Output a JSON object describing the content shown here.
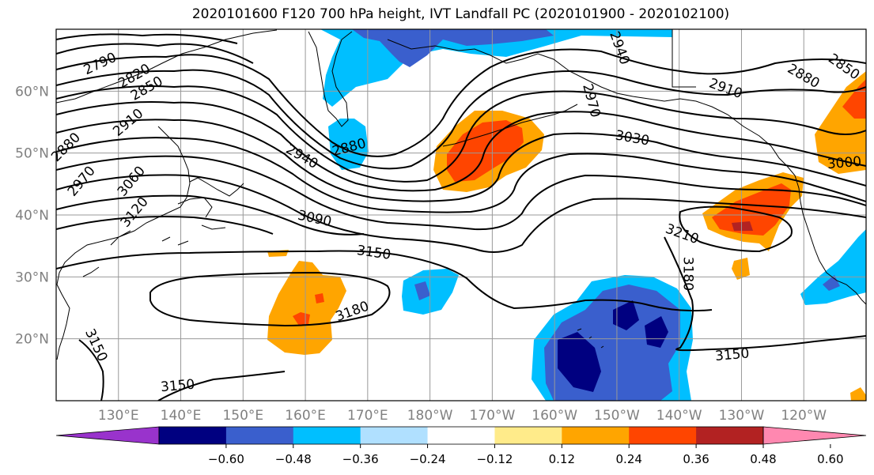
{
  "title": "2020101600 F120 700 hPa height, IVT Landfall PC (2020101900 - 2020102100)",
  "map": {
    "lon_range": [
      120,
      250
    ],
    "lat_range": [
      10,
      70
    ],
    "lon_ticks": [
      "130°E",
      "140°E",
      "150°E",
      "160°E",
      "170°E",
      "180°W",
      "170°W",
      "160°W",
      "150°W",
      "140°W",
      "130°W",
      "120°W"
    ],
    "lat_ticks": [
      "20°N",
      "30°N",
      "40°N",
      "50°N",
      "60°N"
    ],
    "grid": true
  },
  "contour_labels": [
    {
      "text": "2790",
      "lon": 127,
      "lat": 64.5,
      "rot": -25
    },
    {
      "text": "2820",
      "lon": 132.5,
      "lat": 62.5,
      "rot": -30
    },
    {
      "text": "2850",
      "lon": 134.5,
      "lat": 60.5,
      "rot": -30
    },
    {
      "text": "2880",
      "lon": 121.5,
      "lat": 51,
      "rot": -45
    },
    {
      "text": "2910",
      "lon": 131.5,
      "lat": 55,
      "rot": -40
    },
    {
      "text": "2970",
      "lon": 124,
      "lat": 45.5,
      "rot": -50
    },
    {
      "text": "3060",
      "lon": 132,
      "lat": 45.5,
      "rot": -50
    },
    {
      "text": "3120",
      "lon": 132.5,
      "lat": 40.5,
      "rot": -50
    },
    {
      "text": "2940",
      "lon": 159.5,
      "lat": 49.5,
      "rot": 30
    },
    {
      "text": "2880",
      "lon": 167,
      "lat": 51,
      "rot": -15
    },
    {
      "text": "3090",
      "lon": 161.5,
      "lat": 39.5,
      "rot": 12
    },
    {
      "text": "3150",
      "lon": 171,
      "lat": 34,
      "rot": 8
    },
    {
      "text": "3180",
      "lon": 167.5,
      "lat": 24.5,
      "rot": -20
    },
    {
      "text": "3150",
      "lon": 126.5,
      "lat": 19,
      "rot": 65
    },
    {
      "text": "3150",
      "lon": 139.5,
      "lat": 12.5,
      "rot": -5
    },
    {
      "text": "2940",
      "lon": 210.5,
      "lat": 67,
      "rot": 70
    },
    {
      "text": "2970",
      "lon": 206,
      "lat": 58.5,
      "rot": 75
    },
    {
      "text": "3030",
      "lon": 212.5,
      "lat": 52.5,
      "rot": 10
    },
    {
      "text": "2910",
      "lon": 227.5,
      "lat": 60.5,
      "rot": 20
    },
    {
      "text": "2880",
      "lon": 240,
      "lat": 62.5,
      "rot": 30
    },
    {
      "text": "2850",
      "lon": 246.5,
      "lat": 64,
      "rot": 35
    },
    {
      "text": "3000",
      "lon": 246.5,
      "lat": 48.5,
      "rot": -5
    },
    {
      "text": "3210",
      "lon": 220.5,
      "lat": 37,
      "rot": 20
    },
    {
      "text": "3180",
      "lon": 221.5,
      "lat": 30.5,
      "rot": 90
    },
    {
      "text": "3150",
      "lon": 228.5,
      "lat": 17.5,
      "rot": -5
    }
  ],
  "colorbar": {
    "labels": [
      "−0.60",
      "−0.48",
      "−0.36",
      "−0.24",
      "−0.12",
      "0.12",
      "0.24",
      "0.36",
      "0.48",
      "0.60"
    ],
    "colors": [
      "#9933cc",
      "#000080",
      "#3a5fcd",
      "#00bfff",
      "#b0e0ff",
      "#ffffff",
      "#ffeb8a",
      "#ffa500",
      "#ff4500",
      "#b22222",
      "#ff88b0"
    ]
  }
}
